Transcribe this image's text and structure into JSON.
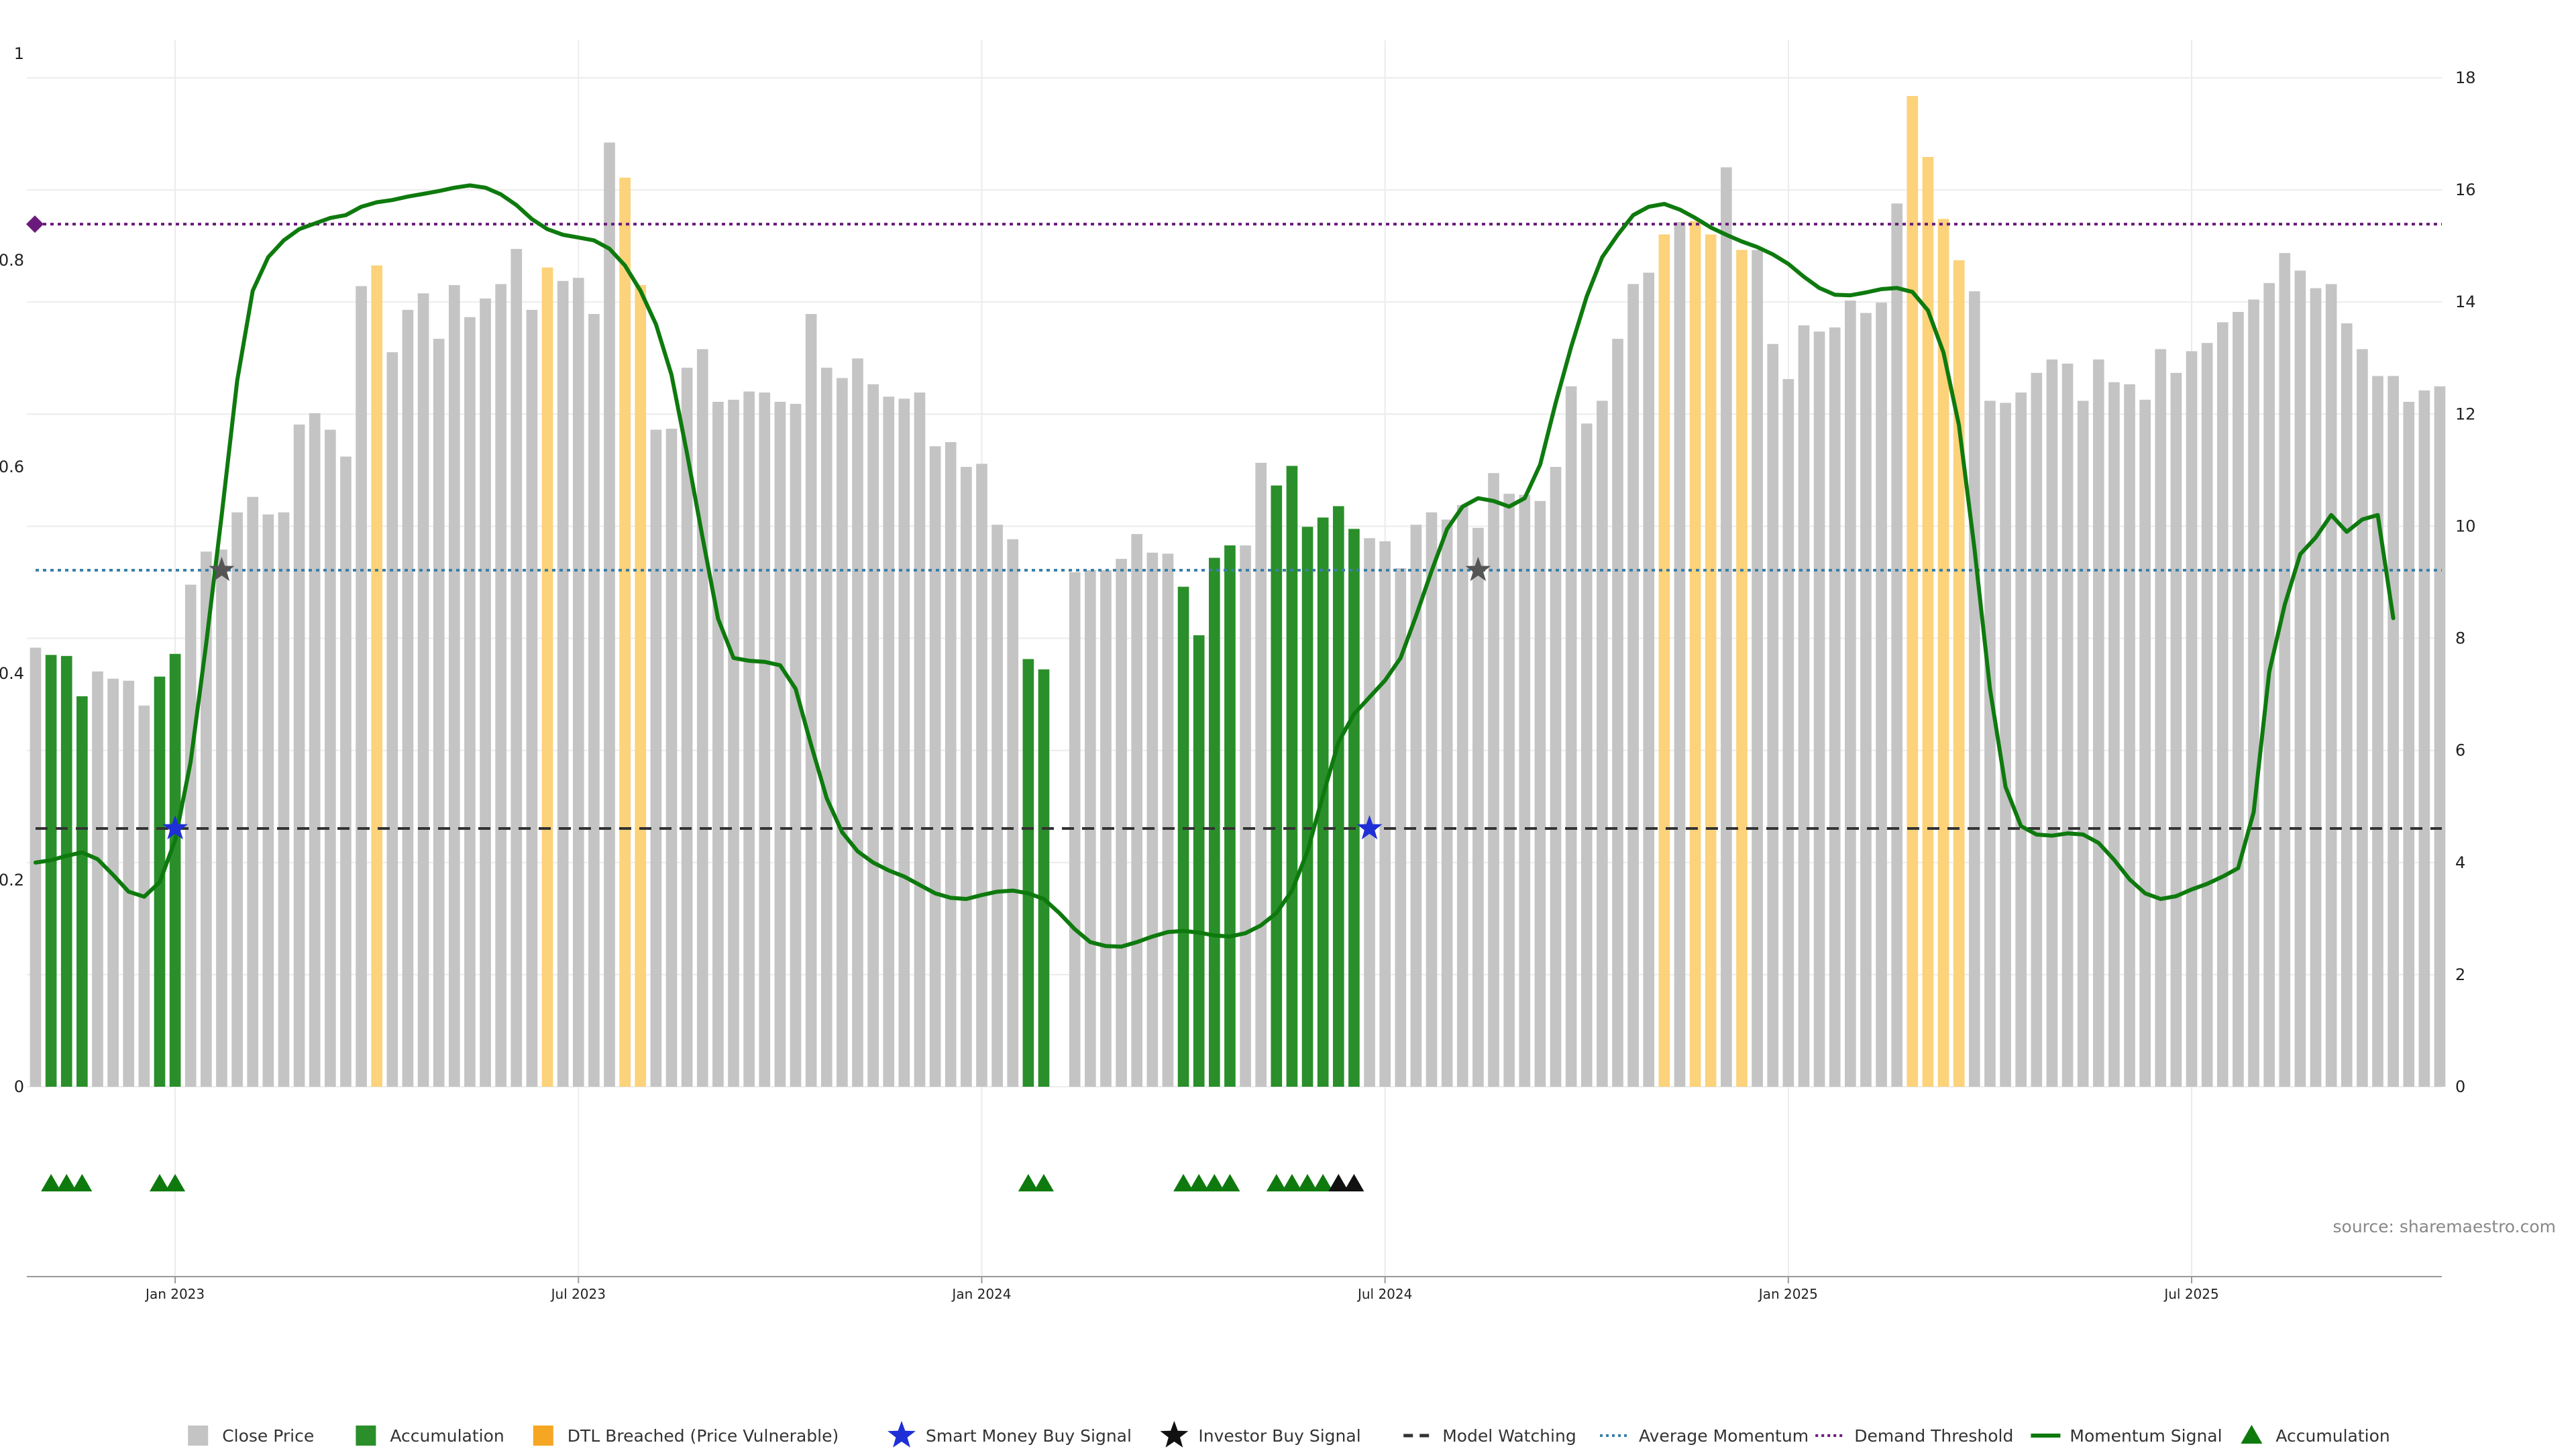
{
  "source_text": "source: sharemaestro.com",
  "colors": {
    "close": "#c4c4c4",
    "accumulation": "#2a8f2a",
    "dtl": "#fcd27a",
    "smart_money": "#1f2fd6",
    "investor": "#111111",
    "model_watching": "#333333",
    "average_momentum": "#3a7fa8",
    "demand_threshold": "#6a1a7a",
    "momentum": "#0e7a0e",
    "accum_marker": "#0e7a0e"
  },
  "chart_data": {
    "type": "bar",
    "left_axis": {
      "ylim": [
        0,
        1
      ],
      "ticks": [
        "0",
        "0.2",
        "0.4",
        "0.6",
        "0.8",
        "1"
      ]
    },
    "right_axis": {
      "ylim": [
        0,
        18
      ],
      "ticks": [
        "0",
        "2",
        "4",
        "6",
        "8",
        "10",
        "12",
        "14",
        "16",
        "18"
      ]
    },
    "x_ticks": [
      "Jan 2023",
      "Jul 2023",
      "Jan 2024",
      "Jul 2024",
      "Jan 2025",
      "Jul 2025"
    ],
    "x_tick_bar_index": [
      9,
      35,
      61,
      87,
      113,
      139
    ],
    "close_values": [
      0.425,
      0.418,
      0.417,
      0.378,
      0.402,
      0.395,
      0.393,
      0.369,
      0.397,
      0.419,
      0.486,
      0.518,
      0.52,
      0.556,
      0.571,
      0.554,
      0.556,
      0.641,
      0.652,
      0.636,
      0.61,
      0.775,
      0.795,
      0.711,
      0.752,
      0.768,
      0.724,
      0.776,
      0.745,
      0.763,
      0.777,
      0.811,
      0.752,
      0.793,
      0.78,
      0.783,
      0.748,
      0.914,
      0.88,
      0.776,
      0.636,
      0.637,
      0.696,
      0.714,
      0.663,
      0.665,
      0.673,
      0.672,
      0.663,
      0.661,
      0.748,
      0.696,
      0.686,
      0.705,
      0.68,
      0.668,
      0.666,
      0.672,
      0.62,
      0.624,
      0.6,
      0.603,
      0.544,
      0.53,
      0.414,
      0.404,
      0.0,
      0.498,
      0.5,
      0.5,
      0.511,
      0.535,
      0.517,
      0.516,
      0.484,
      0.437,
      0.512,
      0.524,
      0.524,
      0.604,
      0.582,
      0.601,
      0.542,
      0.551,
      0.562,
      0.54,
      0.531,
      0.528,
      0.502,
      0.544,
      0.556,
      0.549,
      0.563,
      0.541,
      0.594,
      0.574,
      0.573,
      0.567,
      0.6,
      0.678,
      0.642,
      0.664,
      0.724,
      0.777,
      0.788,
      0.825,
      0.837,
      0.838,
      0.825,
      0.89,
      0.81,
      0.81,
      0.719,
      0.685,
      0.737,
      0.731,
      0.735,
      0.761,
      0.749,
      0.759,
      0.855,
      0.959,
      0.9,
      0.84,
      0.8,
      0.77,
      0.664,
      0.662,
      0.672,
      0.691,
      0.704,
      0.7,
      0.664,
      0.704,
      0.682,
      0.68,
      0.665,
      0.714,
      0.691,
      0.712,
      0.72,
      0.74,
      0.75,
      0.762,
      0.778,
      0.807,
      0.79,
      0.773,
      0.777,
      0.739,
      0.714,
      0.688,
      0.688,
      0.663,
      0.674,
      0.678
    ],
    "accumulation_bars": [
      1,
      2,
      3,
      8,
      9,
      64,
      65,
      74,
      75,
      76,
      77,
      80,
      81,
      82,
      83,
      84,
      85
    ],
    "dtl_bars": [
      22,
      33,
      38,
      39,
      105,
      107,
      108,
      110,
      121,
      122,
      123,
      124
    ],
    "momentum_values": [
      4.0,
      4.04,
      4.12,
      4.18,
      4.06,
      3.78,
      3.48,
      3.39,
      3.65,
      4.4,
      5.8,
      7.9,
      10.2,
      12.6,
      14.2,
      14.8,
      15.1,
      15.3,
      15.4,
      15.5,
      15.55,
      15.7,
      15.78,
      15.82,
      15.88,
      15.93,
      15.98,
      16.04,
      16.08,
      16.04,
      15.92,
      15.73,
      15.48,
      15.3,
      15.2,
      15.15,
      15.1,
      14.95,
      14.65,
      14.2,
      13.6,
      12.7,
      11.3,
      9.8,
      8.35,
      7.65,
      7.6,
      7.58,
      7.52,
      7.1,
      6.1,
      5.15,
      4.54,
      4.2,
      4.0,
      3.86,
      3.75,
      3.6,
      3.45,
      3.37,
      3.35,
      3.42,
      3.48,
      3.5,
      3.45,
      3.35,
      3.1,
      2.81,
      2.58,
      2.51,
      2.5,
      2.58,
      2.68,
      2.76,
      2.78,
      2.75,
      2.7,
      2.68,
      2.74,
      2.88,
      3.1,
      3.5,
      4.2,
      5.2,
      6.15,
      6.65,
      6.95,
      7.25,
      7.65,
      8.4,
      9.2,
      9.95,
      10.35,
      10.5,
      10.45,
      10.35,
      10.5,
      11.1,
      12.2,
      13.2,
      14.1,
      14.8,
      15.2,
      15.55,
      15.7,
      15.75,
      15.65,
      15.5,
      15.33,
      15.2,
      15.08,
      14.98,
      14.85,
      14.68,
      14.45,
      14.25,
      14.13,
      14.12,
      14.17,
      14.23,
      14.25,
      14.18,
      13.85,
      13.1,
      11.8,
      9.6,
      7.1,
      5.35,
      4.65,
      4.5,
      4.48,
      4.52,
      4.5,
      4.35,
      4.05,
      3.7,
      3.45,
      3.35,
      3.4,
      3.52,
      3.62,
      3.75,
      3.9,
      4.9,
      7.4,
      8.6,
      9.5,
      9.8,
      10.2,
      9.9,
      10.12,
      10.2,
      8.36
    ],
    "model_watching": 0.25,
    "average_momentum": 0.5,
    "demand_threshold": 0.835,
    "smart_money_signals": [
      {
        "bar": 9,
        "y": 0.25
      },
      {
        "bar": 86,
        "y": 0.25
      }
    ],
    "investor_signals": [
      {
        "bar": 12,
        "y": 0.5
      },
      {
        "bar": 93,
        "y": 0.5
      }
    ],
    "accum_markers": [
      {
        "bar": 1,
        "color": "green"
      },
      {
        "bar": 2,
        "color": "green"
      },
      {
        "bar": 3,
        "color": "green"
      },
      {
        "bar": 8,
        "color": "green"
      },
      {
        "bar": 9,
        "color": "green"
      },
      {
        "bar": 64,
        "color": "green"
      },
      {
        "bar": 65,
        "color": "green"
      },
      {
        "bar": 74,
        "color": "green"
      },
      {
        "bar": 75,
        "color": "green"
      },
      {
        "bar": 76,
        "color": "green"
      },
      {
        "bar": 77,
        "color": "green"
      },
      {
        "bar": 80,
        "color": "green"
      },
      {
        "bar": 81,
        "color": "green"
      },
      {
        "bar": 82,
        "color": "green"
      },
      {
        "bar": 83,
        "color": "green"
      },
      {
        "bar": 84,
        "color": "black"
      },
      {
        "bar": 85,
        "color": "black"
      }
    ],
    "legend_position": "bottom-center",
    "legend": [
      {
        "key": "close",
        "label": "Close Price",
        "symbol": "square"
      },
      {
        "key": "accumulation",
        "label": "Accumulation",
        "symbol": "square"
      },
      {
        "key": "dtl",
        "label": "DTL Breached (Price Vulnerable)",
        "symbol": "square-orange"
      },
      {
        "key": "smart_money",
        "label": "Smart Money Buy Signal",
        "symbol": "star"
      },
      {
        "key": "investor",
        "label": "Investor Buy Signal",
        "symbol": "star"
      },
      {
        "key": "model_watching",
        "label": "Model Watching",
        "symbol": "dash"
      },
      {
        "key": "average_momentum",
        "label": "Average Momentum",
        "symbol": "dot"
      },
      {
        "key": "demand_threshold",
        "label": "Demand Threshold",
        "symbol": "dot"
      },
      {
        "key": "momentum",
        "label": "Momentum Signal",
        "symbol": "line"
      },
      {
        "key": "accum_marker",
        "label": "Accumulation",
        "symbol": "triangle"
      }
    ]
  }
}
